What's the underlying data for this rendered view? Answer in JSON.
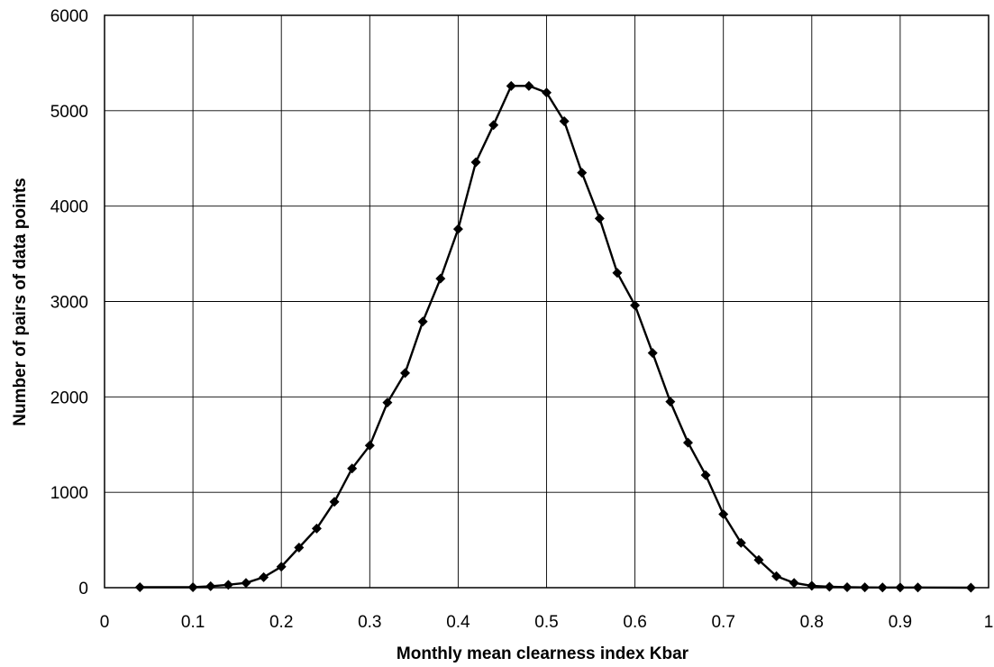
{
  "chart_data": {
    "type": "line",
    "title": "",
    "xlabel": "Monthly mean clearness index Kbar",
    "ylabel": "Number of pairs of data points",
    "xlim": [
      0,
      1
    ],
    "ylim": [
      0,
      6000
    ],
    "x_ticks": [
      "0",
      "0.1",
      "0.2",
      "0.3",
      "0.4",
      "0.5",
      "0.6",
      "0.7",
      "0.8",
      "0.9",
      "1"
    ],
    "y_ticks": [
      "0",
      "1000",
      "2000",
      "3000",
      "4000",
      "5000",
      "6000"
    ],
    "grid": true,
    "legend": "none",
    "marker": "diamond",
    "color": "#000000",
    "series": [
      {
        "x": [
          0.04,
          0.1,
          0.12,
          0.14,
          0.16,
          0.18,
          0.2,
          0.22,
          0.24,
          0.26,
          0.28,
          0.3,
          0.32,
          0.34,
          0.36,
          0.38,
          0.4,
          0.42,
          0.44,
          0.46,
          0.48,
          0.5,
          0.52,
          0.54,
          0.56,
          0.58,
          0.6,
          0.62,
          0.64,
          0.66,
          0.68,
          0.7,
          0.72,
          0.74,
          0.76,
          0.78,
          0.8,
          0.82,
          0.84,
          0.86,
          0.88,
          0.9,
          0.92,
          0.98
        ],
        "y": [
          5,
          5,
          15,
          30,
          50,
          110,
          220,
          420,
          620,
          900,
          1250,
          1490,
          1940,
          2250,
          2790,
          3240,
          3760,
          4460,
          4850,
          5260,
          5260,
          5190,
          4890,
          4350,
          3870,
          3300,
          2960,
          2460,
          1950,
          1520,
          1180,
          770,
          470,
          290,
          120,
          50,
          20,
          10,
          5,
          3,
          2,
          2,
          2,
          0
        ]
      }
    ]
  }
}
